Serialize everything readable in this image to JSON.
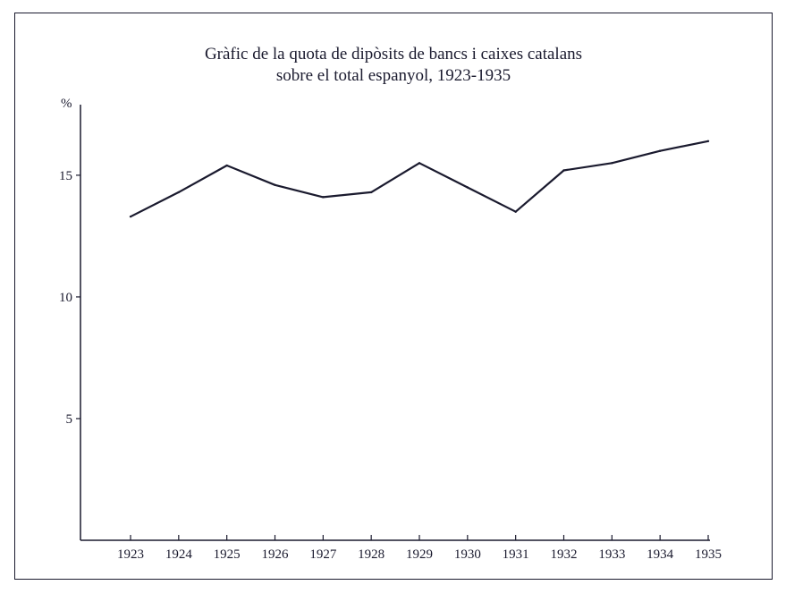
{
  "chart_data": {
    "type": "line",
    "title_lines": [
      "Gràfic de la quota de dipòsits de bancs i caixes catalans",
      "sobre el total espanyol, 1923-1935"
    ],
    "ylabel": "%",
    "xlabel": "",
    "categories": [
      "1923",
      "1924",
      "1925",
      "1926",
      "1927",
      "1928",
      "1929",
      "1930",
      "1931",
      "1932",
      "1933",
      "1934",
      "1935"
    ],
    "series": [
      {
        "values": [
          13.3,
          14.3,
          15.4,
          14.6,
          14.1,
          14.3,
          15.5,
          14.5,
          13.5,
          15.2,
          15.5,
          16.0,
          16.4
        ]
      }
    ],
    "y_ticks": [
      5,
      10,
      15
    ],
    "ylim": [
      0,
      17.9
    ],
    "grid": false,
    "line_color": "#1a1a2e"
  }
}
